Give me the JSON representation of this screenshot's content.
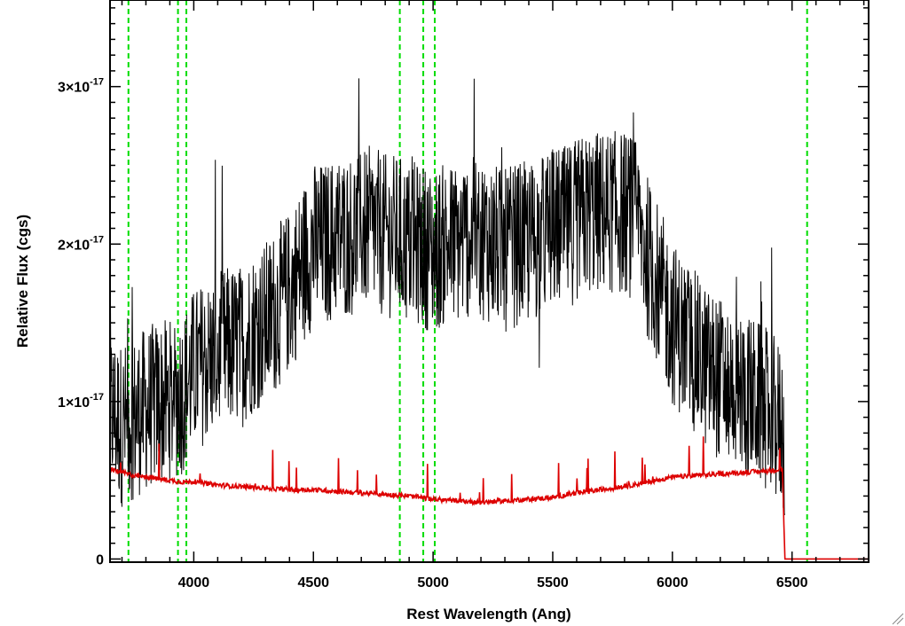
{
  "chart_data": {
    "type": "line",
    "title": "",
    "xlabel": "Rest Wavelength (Ang)",
    "ylabel": "Relative Flux (cgs)",
    "xlim": [
      3650,
      6820
    ],
    "ylim": [
      -2e-19,
      3.55e-17
    ],
    "grid": false,
    "legend": "none",
    "x_ticks": [
      {
        "value": 4000,
        "label": "4000"
      },
      {
        "value": 4500,
        "label": "4500"
      },
      {
        "value": 5000,
        "label": "5000"
      },
      {
        "value": 5500,
        "label": "5500"
      },
      {
        "value": 6000,
        "label": "6000"
      },
      {
        "value": 6500,
        "label": "6500"
      }
    ],
    "y_ticks": [
      {
        "value": 0,
        "mantissa": "0",
        "exponent": ""
      },
      {
        "value": 1e-17,
        "mantissa": "1×10",
        "exponent": "-17"
      },
      {
        "value": 2e-17,
        "mantissa": "2×10",
        "exponent": "-17"
      },
      {
        "value": 3e-17,
        "mantissa": "3×10",
        "exponent": "-17"
      }
    ],
    "reference_lines": {
      "color": "#00dd00",
      "style": "dashed",
      "x": [
        3727,
        3934,
        3969,
        4861,
        4959,
        5007,
        6563
      ]
    },
    "series": [
      {
        "color": "#000000",
        "points": [
          [
            3650,
            9.5e-18
          ],
          [
            3700,
            8.5e-18
          ],
          [
            3750,
            9e-18
          ],
          [
            3800,
            9.5e-18
          ],
          [
            3850,
            1e-17
          ],
          [
            3900,
            1e-17
          ],
          [
            3950,
            1.05e-17
          ],
          [
            4000,
            1.2e-17
          ],
          [
            4050,
            1.25e-17
          ],
          [
            4100,
            1.3e-17
          ],
          [
            4150,
            1.35e-17
          ],
          [
            4200,
            1.35e-17
          ],
          [
            4250,
            1.45e-17
          ],
          [
            4300,
            1.5e-17
          ],
          [
            4350,
            1.6e-17
          ],
          [
            4400,
            1.7e-17
          ],
          [
            4450,
            1.85e-17
          ],
          [
            4500,
            2e-17
          ],
          [
            4550,
            2e-17
          ],
          [
            4600,
            2.05e-17
          ],
          [
            4650,
            2.05e-17
          ],
          [
            4700,
            2.1e-17
          ],
          [
            4750,
            2.1e-17
          ],
          [
            4800,
            2.05e-17
          ],
          [
            4850,
            2.05e-17
          ],
          [
            4900,
            2e-17
          ],
          [
            4950,
            2e-17
          ],
          [
            5000,
            1.95e-17
          ],
          [
            5050,
            2e-17
          ],
          [
            5100,
            2e-17
          ],
          [
            5150,
            2.05e-17
          ],
          [
            5200,
            2.05e-17
          ],
          [
            5250,
            2e-17
          ],
          [
            5300,
            1.95e-17
          ],
          [
            5350,
            2e-17
          ],
          [
            5400,
            2e-17
          ],
          [
            5450,
            2.05e-17
          ],
          [
            5500,
            2.1e-17
          ],
          [
            5550,
            2.1e-17
          ],
          [
            5600,
            2.15e-17
          ],
          [
            5650,
            2.2e-17
          ],
          [
            5700,
            2.2e-17
          ],
          [
            5750,
            2.2e-17
          ],
          [
            5800,
            2.2e-17
          ],
          [
            5850,
            2.15e-17
          ],
          [
            5900,
            1.9e-17
          ],
          [
            5950,
            1.7e-17
          ],
          [
            6000,
            1.5e-17
          ],
          [
            6050,
            1.4e-17
          ],
          [
            6100,
            1.3e-17
          ],
          [
            6150,
            1.2e-17
          ],
          [
            6200,
            1.15e-17
          ],
          [
            6250,
            1.1e-17
          ],
          [
            6300,
            1.05e-17
          ],
          [
            6350,
            1e-17
          ],
          [
            6400,
            9.5e-18
          ],
          [
            6450,
            8.5e-18
          ],
          [
            6470,
            7.5e-18
          ]
        ]
      },
      {
        "color": "#dd0000",
        "points": [
          [
            3650,
            5.7e-18
          ],
          [
            3700,
            5.5e-18
          ],
          [
            3750,
            5.3e-18
          ],
          [
            3800,
            5.2e-18
          ],
          [
            3850,
            5.1e-18
          ],
          [
            3900,
            5e-18
          ],
          [
            3950,
            4.9e-18
          ],
          [
            4000,
            4.9e-18
          ],
          [
            4100,
            4.7e-18
          ],
          [
            4200,
            4.6e-18
          ],
          [
            4300,
            4.5e-18
          ],
          [
            4400,
            4.4e-18
          ],
          [
            4500,
            4.4e-18
          ],
          [
            4600,
            4.3e-18
          ],
          [
            4700,
            4.2e-18
          ],
          [
            4800,
            4.1e-18
          ],
          [
            4900,
            4e-18
          ],
          [
            5000,
            3.8e-18
          ],
          [
            5100,
            3.7e-18
          ],
          [
            5200,
            3.6e-18
          ],
          [
            5300,
            3.7e-18
          ],
          [
            5400,
            3.8e-18
          ],
          [
            5500,
            3.9e-18
          ],
          [
            5600,
            4.2e-18
          ],
          [
            5700,
            4.4e-18
          ],
          [
            5800,
            4.6e-18
          ],
          [
            5900,
            4.9e-18
          ],
          [
            6000,
            5.2e-18
          ],
          [
            6100,
            5.3e-18
          ],
          [
            6200,
            5.4e-18
          ],
          [
            6300,
            5.5e-18
          ],
          [
            6400,
            5.6e-18
          ],
          [
            6460,
            5.7e-18
          ],
          [
            6470,
            0.0
          ],
          [
            6820,
            0.0
          ]
        ]
      }
    ]
  }
}
